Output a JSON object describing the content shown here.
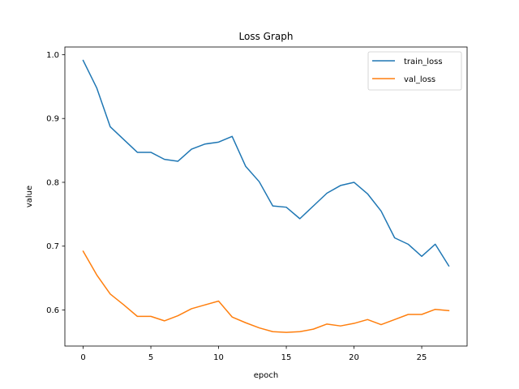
{
  "chart_data": {
    "type": "line",
    "title": "Loss Graph",
    "xlabel": "epoch",
    "ylabel": "value",
    "x": [
      0,
      1,
      2,
      3,
      4,
      5,
      6,
      7,
      8,
      9,
      10,
      11,
      12,
      13,
      14,
      15,
      16,
      17,
      18,
      19,
      20,
      21,
      22,
      23,
      24,
      25,
      26,
      27
    ],
    "xlim": [
      -1.35,
      28.35
    ],
    "ylim": [
      0.5435,
      1.012
    ],
    "xticks": [
      0,
      5,
      10,
      15,
      20,
      25
    ],
    "xtick_labels": [
      "0",
      "5",
      "10",
      "15",
      "20",
      "25"
    ],
    "yticks": [
      0.6,
      0.7,
      0.8,
      0.9,
      1.0
    ],
    "ytick_labels": [
      "0.6",
      "0.7",
      "0.8",
      "0.9",
      "1.0"
    ],
    "grid": false,
    "legend_position": "top-right",
    "series": [
      {
        "name": "train_loss",
        "color": "#1f77b4",
        "values": [
          0.991,
          0.948,
          0.887,
          0.867,
          0.847,
          0.847,
          0.836,
          0.833,
          0.852,
          0.86,
          0.863,
          0.872,
          0.825,
          0.801,
          0.763,
          0.761,
          0.743,
          0.763,
          0.783,
          0.795,
          0.8,
          0.782,
          0.755,
          0.713,
          0.703,
          0.684,
          0.703,
          0.669
        ]
      },
      {
        "name": "val_loss",
        "color": "#ff7f0e",
        "values": [
          0.692,
          0.655,
          0.625,
          0.608,
          0.59,
          0.59,
          0.583,
          0.591,
          0.602,
          0.608,
          0.614,
          0.589,
          0.58,
          0.572,
          0.566,
          0.565,
          0.566,
          0.57,
          0.578,
          0.575,
          0.579,
          0.585,
          0.577,
          0.585,
          0.593,
          0.593,
          0.601,
          0.599
        ]
      }
    ]
  }
}
